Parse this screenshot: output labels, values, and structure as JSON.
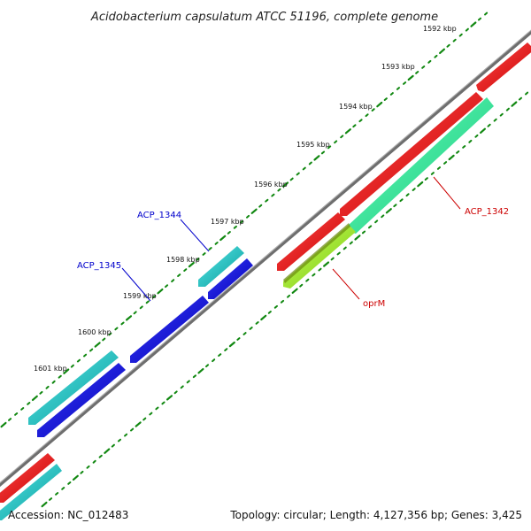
{
  "title": "Acidobacterium capsulatum ATCC 51196, complete genome",
  "footer": {
    "accession": "Accession: NC_012483",
    "summary": "Topology: circular; Length: 4,127,356 bp; Genes: 3,425"
  },
  "ticks": [
    {
      "label": "1592 kbp"
    },
    {
      "label": "1593 kbp"
    },
    {
      "label": "1594 kbp"
    },
    {
      "label": "1595 kbp"
    },
    {
      "label": "1596 kbp"
    },
    {
      "label": "1597 kbp"
    },
    {
      "label": "1598 kbp"
    },
    {
      "label": "1599 kbp"
    },
    {
      "label": "1600 kbp"
    },
    {
      "label": "1601 kbp"
    }
  ],
  "gene_labels": [
    {
      "name": "ACP_1344",
      "color": "#0000cc"
    },
    {
      "name": "ACP_1345",
      "color": "#0000cc"
    },
    {
      "name": "ACP_1342",
      "color": "#cc0000"
    },
    {
      "name": "oprM",
      "color": "#cc0000"
    }
  ],
  "colors": {
    "backbone": "#777777",
    "tick": "#118811",
    "cds_red": "#ee0000",
    "cds_cyan": "#11bbbb",
    "cds_blue": "#0000dd",
    "cds_green": "#22ee99",
    "cds_lime": "#99ee22"
  }
}
